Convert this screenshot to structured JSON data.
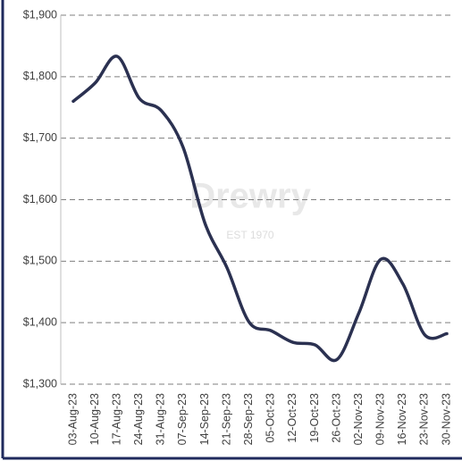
{
  "chart_data": {
    "type": "line",
    "watermark": [
      "Drewry",
      "EST 1970"
    ],
    "categories": [
      "03-Aug-23",
      "10-Aug-23",
      "17-Aug-23",
      "24-Aug-23",
      "31-Aug-23",
      "07-Sep-23",
      "14-Sep-23",
      "21-Sep-23",
      "28-Sep-23",
      "05-Oct-23",
      "12-Oct-23",
      "19-Oct-23",
      "26-Oct-23",
      "02-Nov-23",
      "09-Nov-23",
      "16-Nov-23",
      "23-Nov-23",
      "30-Nov-23"
    ],
    "series": [
      {
        "color": "#2b3151",
        "values": [
          1760,
          1790,
          1833,
          1765,
          1745,
          1685,
          1561,
          1489,
          1401,
          1387,
          1368,
          1364,
          1340,
          1416,
          1503,
          1463,
          1380,
          1382
        ]
      }
    ],
    "ylim": [
      1300,
      1900
    ],
    "yticks": [
      {
        "value": 1300,
        "label": "$1,300"
      },
      {
        "value": 1400,
        "label": "$1,400"
      },
      {
        "value": 1500,
        "label": "$1,500"
      },
      {
        "value": 1600,
        "label": "$1,600"
      },
      {
        "value": 1700,
        "label": "$1,700"
      },
      {
        "value": 1800,
        "label": "$1,800"
      },
      {
        "value": 1900,
        "label": "$1,900"
      }
    ],
    "grid": true
  }
}
